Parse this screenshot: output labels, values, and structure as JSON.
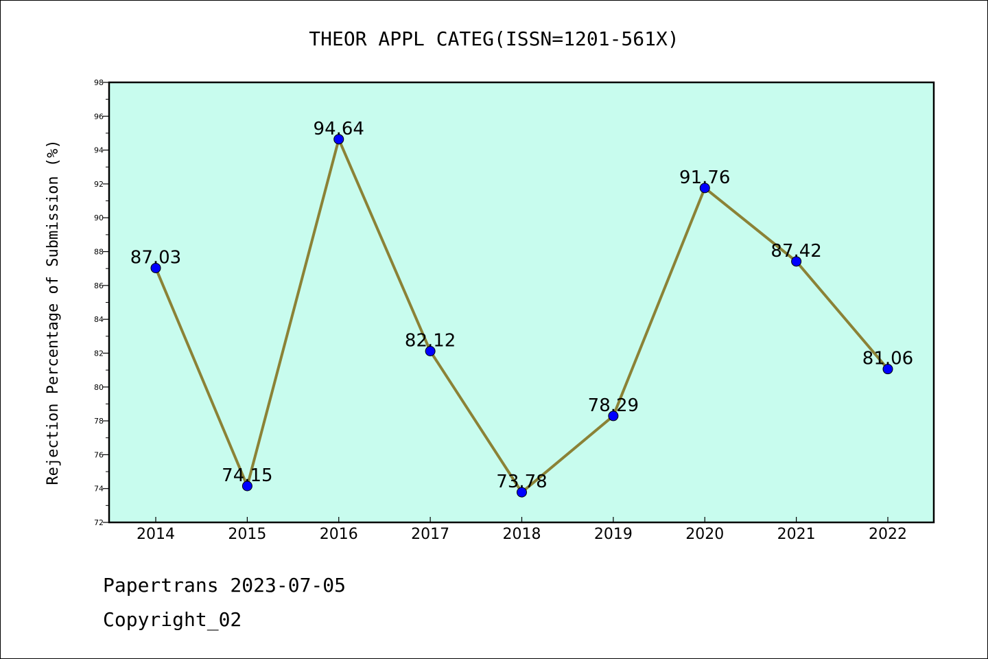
{
  "chart_data": {
    "type": "line",
    "title": "THEOR APPL CATEG(ISSN=1201-561X)",
    "xlabel": "",
    "ylabel": "Rejection Percentage of Submission (%)",
    "categories": [
      "2014",
      "2015",
      "2016",
      "2017",
      "2018",
      "2019",
      "2020",
      "2021",
      "2022"
    ],
    "values": [
      87.03,
      74.15,
      94.64,
      82.12,
      73.78,
      78.29,
      91.76,
      87.42,
      81.06
    ],
    "data_labels": [
      "87.03",
      "74.15",
      "94.64",
      "82.12",
      "73.78",
      "78.29",
      "91.76",
      "87.42",
      "81.06"
    ],
    "ylim": [
      72,
      98
    ],
    "yticks": [
      72,
      74,
      76,
      78,
      80,
      82,
      84,
      86,
      88,
      90,
      92,
      94,
      96,
      98
    ],
    "grid": false,
    "legend": "none",
    "colors": {
      "plot_background": "#c8fcee",
      "line": "#8b8236",
      "marker": "#0000ff"
    }
  },
  "footer": {
    "line1": "Papertrans 2023-07-05",
    "line2": "Copyright_02"
  }
}
